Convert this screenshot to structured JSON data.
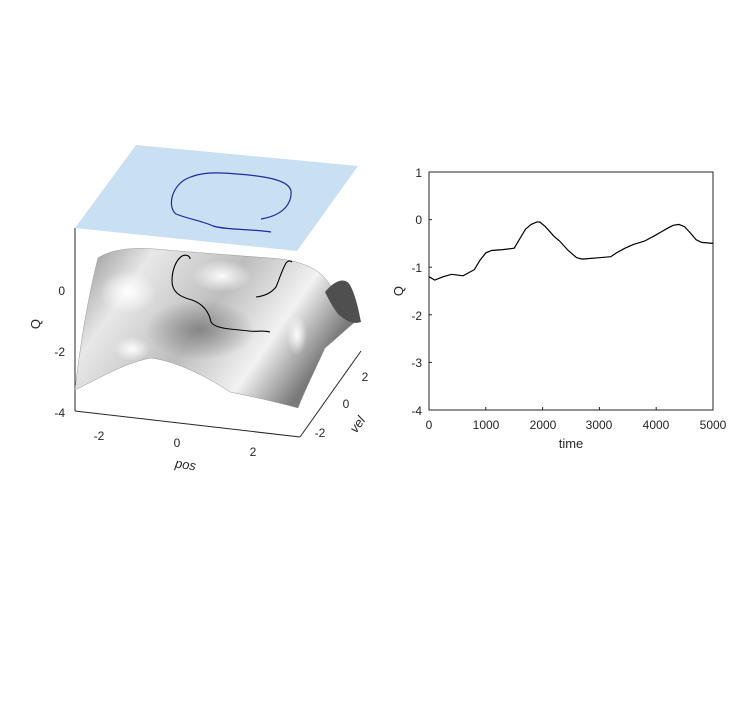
{
  "chart_data": [
    {
      "type": "surface",
      "xlabel": "pos",
      "ylabel": "vel",
      "zlabel": "Q",
      "xlim": [
        -3,
        3
      ],
      "ylim": [
        -3,
        3
      ],
      "zlim": [
        -4,
        2
      ],
      "xticks": [
        "-2",
        "0",
        "2"
      ],
      "yticks": [
        "-2",
        "0",
        "2"
      ],
      "zticks": [
        "-4",
        "-2",
        "0"
      ],
      "surface_color": "#b5b5b5",
      "projection_plane_color": "#c9dff2",
      "projected_trajectory_color": "#1f2a9e",
      "trajectory_color": "#000000"
    },
    {
      "type": "line",
      "xlabel": "time",
      "ylabel": "Q",
      "xlim": [
        0,
        5000
      ],
      "ylim": [
        -4,
        1
      ],
      "xticks": [
        "0",
        "1000",
        "2000",
        "3000",
        "4000",
        "5000"
      ],
      "yticks": [
        "-4",
        "-3",
        "-2",
        "-1",
        "0",
        "1"
      ],
      "grid": false,
      "series": [
        {
          "color": "#000000",
          "x": [
            0,
            100,
            250,
            400,
            600,
            800,
            900,
            1000,
            1100,
            1300,
            1500,
            1600,
            1700,
            1800,
            1900,
            1950,
            2050,
            2200,
            2300,
            2450,
            2600,
            2700,
            2800,
            3000,
            3200,
            3300,
            3450,
            3600,
            3800,
            4000,
            4100,
            4200,
            4300,
            4400,
            4500,
            4600,
            4700,
            4800,
            5000
          ],
          "y": [
            -1.2,
            -1.27,
            -1.2,
            -1.15,
            -1.18,
            -1.05,
            -0.85,
            -0.7,
            -0.65,
            -0.63,
            -0.6,
            -0.4,
            -0.2,
            -0.1,
            -0.05,
            -0.05,
            -0.15,
            -0.35,
            -0.45,
            -0.65,
            -0.8,
            -0.83,
            -0.82,
            -0.8,
            -0.78,
            -0.7,
            -0.6,
            -0.52,
            -0.45,
            -0.32,
            -0.25,
            -0.18,
            -0.12,
            -0.1,
            -0.15,
            -0.28,
            -0.42,
            -0.48,
            -0.5
          ]
        }
      ]
    }
  ]
}
